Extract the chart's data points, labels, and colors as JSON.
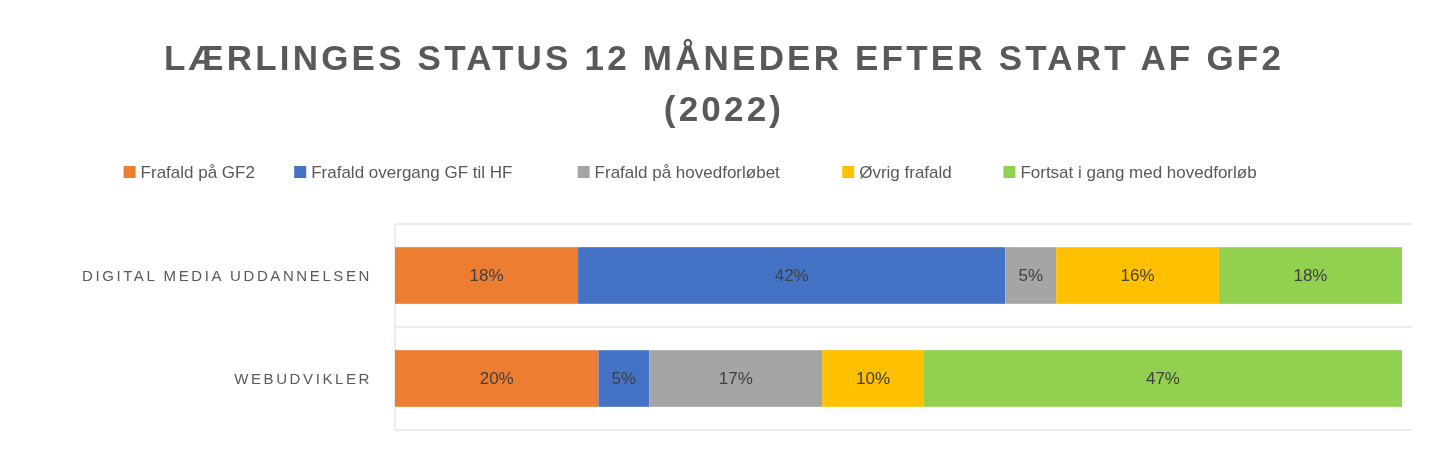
{
  "chart_data": {
    "type": "bar",
    "orientation": "horizontal",
    "stacked": true,
    "title": "LÆRLINGES STATUS 12 MÅNEDER EFTER START AF GF2 (2022)",
    "categories": [
      "DIGITAL MEDIA UDDANNELSEN",
      "WEBUDVIKLER"
    ],
    "legend": "top",
    "grid": "y",
    "series": [
      {
        "name": "Frafald på GF2",
        "color": "#ed7d31",
        "values": [
          18,
          20
        ],
        "value_labels": [
          "18%",
          "20%"
        ]
      },
      {
        "name": "Frafald overgang GF til HF",
        "color": "#4472c4",
        "values": [
          42,
          5
        ],
        "value_labels": [
          "42%",
          "5%"
        ]
      },
      {
        "name": "Frafald på hovedforløbet",
        "color": "#a5a5a5",
        "values": [
          5,
          17
        ],
        "value_labels": [
          "5%",
          "17%"
        ]
      },
      {
        "name": "Øvrig frafald",
        "color": "#ffc000",
        "values": [
          16,
          10
        ],
        "value_labels": [
          "16%",
          "10%"
        ]
      },
      {
        "name": "Fortsat i gang med hovedforløb",
        "color": "#92d050",
        "values": [
          18,
          47
        ],
        "value_labels": [
          "18%",
          "47%"
        ]
      }
    ]
  }
}
